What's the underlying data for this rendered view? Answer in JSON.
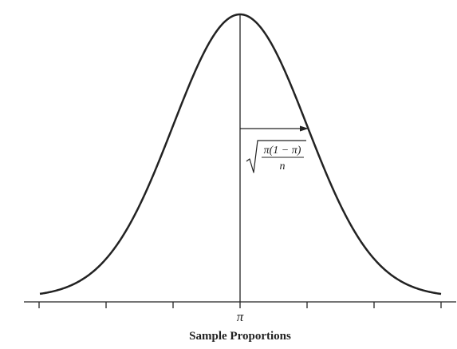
{
  "diagram": {
    "type": "normal-distribution-curve",
    "center_label": "π",
    "x_axis_title": "Sample Proportions",
    "tick_count": 7,
    "standard_error_formula": {
      "numerator": "π(1 − π)",
      "denominator": "n",
      "root": "square-root"
    },
    "colors": {
      "curve": "#222222",
      "axis": "#222222",
      "background": "#ffffff"
    }
  }
}
